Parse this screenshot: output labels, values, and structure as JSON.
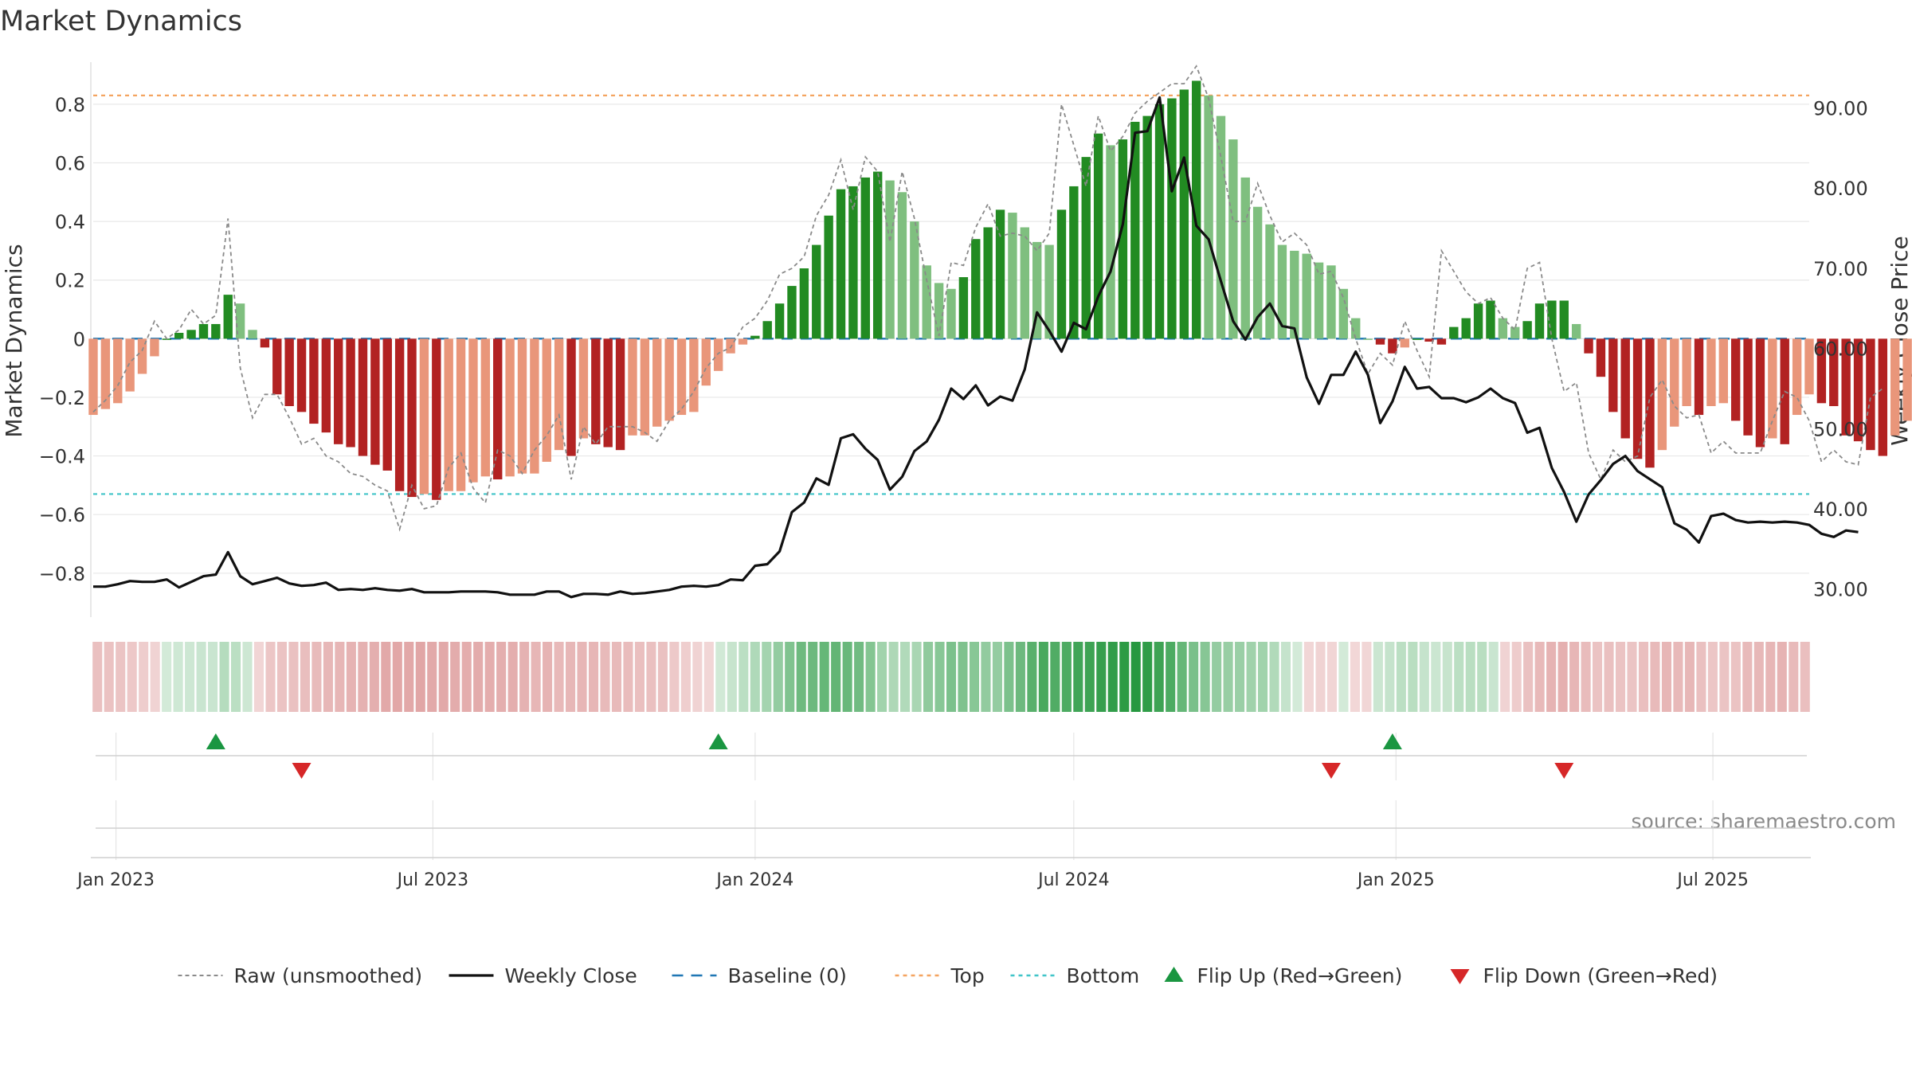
{
  "chart_data": {
    "type": "bar",
    "title": "Market Dynamics",
    "ylabel_left": "Market Dynamics",
    "ylabel_right": "Weekly Close Price",
    "source": "source: sharemaestro.com",
    "ylim_left": [
      -0.95,
      0.96
    ],
    "ylim_right": [
      26.5,
      96.3
    ],
    "yticks_left": [
      -0.8,
      -0.6,
      -0.4,
      -0.2,
      0,
      0.2,
      0.4,
      0.6,
      0.8
    ],
    "yticks_left_labels": [
      "−0.8",
      "−0.6",
      "−0.4",
      "−0.2",
      "0",
      "0.2",
      "0.4",
      "0.6",
      "0.8"
    ],
    "yticks_right": [
      30,
      40,
      50,
      60,
      70,
      80,
      90
    ],
    "yticks_right_labels": [
      "30.00",
      "40.00",
      "50.00",
      "60.00",
      "70.00",
      "80.00",
      "90.00"
    ],
    "x_start_date": "2022-12-19",
    "x_end_date": "2025-08-25",
    "xticks": [
      {
        "date": "2023-01-01",
        "label": "Jan 2023"
      },
      {
        "date": "2023-07-01",
        "label": "Jul 2023"
      },
      {
        "date": "2024-01-01",
        "label": "Jan 2024"
      },
      {
        "date": "2024-07-01",
        "label": "Jul 2024"
      },
      {
        "date": "2025-01-01",
        "label": "Jan 2025"
      },
      {
        "date": "2025-07-01",
        "label": "Jul 2025"
      }
    ],
    "top_level": 0.83,
    "bottom_level": -0.53,
    "market_dynamics": [
      -0.26,
      -0.24,
      -0.22,
      -0.18,
      -0.12,
      -0.06,
      0.0,
      0.02,
      0.03,
      0.05,
      0.05,
      0.15,
      0.12,
      0.03,
      -0.03,
      -0.19,
      -0.23,
      -0.25,
      -0.29,
      -0.32,
      -0.36,
      -0.37,
      -0.4,
      -0.43,
      -0.45,
      -0.52,
      -0.54,
      -0.53,
      -0.55,
      -0.52,
      -0.52,
      -0.49,
      -0.47,
      -0.48,
      -0.47,
      -0.46,
      -0.46,
      -0.42,
      -0.38,
      -0.4,
      -0.34,
      -0.36,
      -0.37,
      -0.38,
      -0.33,
      -0.33,
      -0.3,
      -0.28,
      -0.26,
      -0.25,
      -0.16,
      -0.11,
      -0.05,
      -0.02,
      0.01,
      0.06,
      0.12,
      0.18,
      0.24,
      0.32,
      0.42,
      0.51,
      0.52,
      0.55,
      0.57,
      0.54,
      0.5,
      0.4,
      0.25,
      0.19,
      0.17,
      0.21,
      0.34,
      0.38,
      0.44,
      0.43,
      0.38,
      0.33,
      0.32,
      0.44,
      0.52,
      0.62,
      0.7,
      0.66,
      0.68,
      0.74,
      0.76,
      0.8,
      0.82,
      0.85,
      0.88,
      0.83,
      0.76,
      0.68,
      0.55,
      0.45,
      0.39,
      0.32,
      0.3,
      0.29,
      0.26,
      0.25,
      0.17,
      0.07,
      0.0,
      -0.02,
      -0.05,
      -0.03,
      0.0,
      -0.01,
      -0.02,
      0.04,
      0.07,
      0.12,
      0.13,
      0.07,
      0.04,
      0.06,
      0.12,
      0.13,
      0.13,
      0.05,
      -0.05,
      -0.13,
      -0.25,
      -0.34,
      -0.41,
      -0.44,
      -0.38,
      -0.3,
      -0.23,
      -0.26,
      -0.23,
      -0.22,
      -0.28,
      -0.33,
      -0.37,
      -0.34,
      -0.36,
      -0.26,
      -0.19,
      -0.22,
      -0.23,
      -0.33,
      -0.35,
      -0.38,
      -0.4,
      -0.33,
      -0.28
    ],
    "raw_unsmoothed": [
      -0.25,
      -0.21,
      -0.16,
      -0.08,
      -0.04,
      0.06,
      0.0,
      0.03,
      0.1,
      0.05,
      0.08,
      0.41,
      -0.1,
      -0.27,
      -0.19,
      -0.19,
      -0.27,
      -0.36,
      -0.34,
      -0.4,
      -0.42,
      -0.46,
      -0.47,
      -0.5,
      -0.52,
      -0.65,
      -0.5,
      -0.58,
      -0.57,
      -0.44,
      -0.39,
      -0.51,
      -0.56,
      -0.38,
      -0.4,
      -0.46,
      -0.38,
      -0.33,
      -0.26,
      -0.48,
      -0.3,
      -0.36,
      -0.3,
      -0.3,
      -0.3,
      -0.32,
      -0.35,
      -0.28,
      -0.24,
      -0.18,
      -0.1,
      -0.05,
      -0.03,
      0.04,
      0.07,
      0.13,
      0.22,
      0.24,
      0.28,
      0.42,
      0.49,
      0.61,
      0.44,
      0.62,
      0.57,
      0.33,
      0.57,
      0.41,
      0.2,
      0.01,
      0.26,
      0.25,
      0.38,
      0.46,
      0.35,
      0.36,
      0.35,
      0.3,
      0.36,
      0.8,
      0.66,
      0.52,
      0.76,
      0.64,
      0.69,
      0.77,
      0.81,
      0.84,
      0.87,
      0.87,
      0.93,
      0.82,
      0.62,
      0.4,
      0.4,
      0.53,
      0.42,
      0.33,
      0.36,
      0.32,
      0.22,
      0.23,
      0.14,
      0.0,
      -0.12,
      -0.05,
      -0.09,
      0.06,
      -0.04,
      -0.13,
      0.3,
      0.23,
      0.16,
      0.12,
      0.14,
      0.07,
      0.03,
      0.24,
      0.26,
      0.0,
      -0.18,
      -0.15,
      -0.39,
      -0.48,
      -0.38,
      -0.42,
      -0.4,
      -0.2,
      -0.14,
      -0.23,
      -0.27,
      -0.26,
      -0.39,
      -0.35,
      -0.39,
      -0.39,
      -0.39,
      -0.28,
      -0.18,
      -0.2,
      -0.28,
      -0.42,
      -0.38,
      -0.42,
      -0.43,
      -0.2,
      -0.17
    ],
    "weekly_close": [
      30.3,
      30.3,
      30.6,
      31.0,
      30.9,
      30.9,
      31.2,
      30.2,
      30.9,
      31.6,
      31.8,
      34.6,
      31.6,
      30.6,
      31.0,
      31.4,
      30.7,
      30.4,
      30.5,
      30.8,
      29.9,
      30.0,
      29.9,
      30.1,
      29.9,
      29.8,
      30.0,
      29.6,
      29.6,
      29.6,
      29.7,
      29.7,
      29.7,
      29.6,
      29.3,
      29.3,
      29.3,
      29.7,
      29.7,
      29.0,
      29.4,
      29.4,
      29.3,
      29.7,
      29.4,
      29.5,
      29.7,
      29.9,
      30.3,
      30.4,
      30.3,
      30.5,
      31.2,
      31.1,
      32.9,
      33.1,
      34.7,
      39.6,
      40.8,
      43.8,
      43.0,
      48.8,
      49.3,
      47.5,
      46.1,
      42.4,
      44.0,
      47.2,
      48.4,
      51.1,
      55.0,
      53.7,
      55.4,
      52.9,
      54.0,
      53.5,
      57.4,
      64.5,
      62.2,
      59.6,
      63.2,
      62.4,
      66.5,
      69.6,
      75.5,
      86.9,
      87.1,
      91.3,
      79.6,
      83.8,
      75.3,
      73.6,
      68.4,
      63.4,
      61.1,
      63.9,
      65.6,
      62.8,
      62.5,
      56.4,
      53.1,
      56.7,
      56.7,
      59.6,
      56.7,
      50.7,
      53.4,
      57.7,
      55.0,
      55.2,
      53.8,
      53.8,
      53.3,
      53.9,
      55.0,
      53.8,
      53.2,
      49.5,
      50.1,
      45.1,
      42.1,
      38.4,
      41.8,
      43.6,
      45.6,
      46.6,
      44.7,
      43.7,
      42.7,
      38.2,
      37.4,
      35.8,
      39.1,
      39.4,
      38.6,
      38.3,
      38.4,
      38.3,
      38.4,
      38.3,
      38.0,
      36.9,
      36.5,
      37.3,
      37.1
    ],
    "regime_strip_note": "color strip mirrors market_dynamics sign and magnitude",
    "flip_up_dates": [
      "2023-02-27",
      "2023-12-11",
      "2024-12-30"
    ],
    "flip_down_dates": [
      "2023-04-17",
      "2024-11-25",
      "2025-04-07"
    ],
    "legend_placement": "bottom-center",
    "legend": [
      {
        "key": "raw",
        "label": "Raw (unsmoothed)"
      },
      {
        "key": "close",
        "label": "Weekly Close"
      },
      {
        "key": "baseline",
        "label": "Baseline (0)"
      },
      {
        "key": "top",
        "label": "Top"
      },
      {
        "key": "bottom",
        "label": "Bottom"
      },
      {
        "key": "flip_up",
        "label": "Flip Up (Red→Green)"
      },
      {
        "key": "flip_down",
        "label": "Flip Down (Green→Red)"
      }
    ],
    "colors": {
      "pos_strong": "#228b22",
      "pos_weak": "#7fbf7f",
      "neg_strong": "#b22222",
      "neg_weak": "#e9967a",
      "raw": "#8a8a8a",
      "close": "#111111",
      "baseline": "#1f77b4",
      "top": "#f4a460",
      "bottom": "#40c4c8",
      "flip_up": "#1a9641",
      "flip_down": "#d62728"
    },
    "grid": true
  }
}
